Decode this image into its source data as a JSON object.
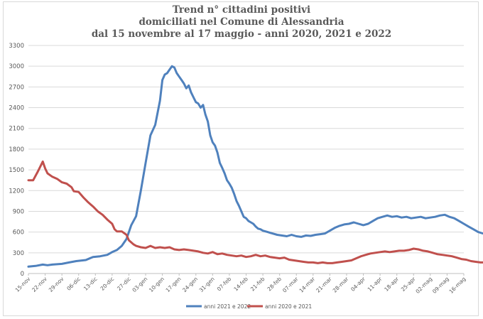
{
  "chart_data": {
    "type": "line",
    "title_lines": [
      "Trend n° cittadini positivi",
      "domiciliati nel Comune di Alessandria",
      "dal 15 novembre al 17 maggio - anni 2020, 2021 e 2022"
    ],
    "xlabel": "",
    "ylabel": "",
    "ylim": [
      0,
      3300
    ],
    "yticks": [
      0,
      300,
      600,
      900,
      1200,
      1500,
      1800,
      2100,
      2400,
      2700,
      3000,
      3300
    ],
    "grid": true,
    "legend_position": "bottom",
    "x_tick_labels": [
      "15-nov",
      "22-nov",
      "29-nov",
      "06-dic",
      "13-dic",
      "20-dic",
      "27-dic",
      "03-gen",
      "10-gen",
      "17-gen",
      "24-gen",
      "31-gen",
      "07-feb",
      "14-feb",
      "21-feb",
      "28-feb",
      "07-mar",
      "14-mar",
      "21-mar",
      "28-mar",
      "04-apr",
      "11-apr",
      "18-apr",
      "25-apr",
      "02-mag",
      "09-mag",
      "16-mag"
    ],
    "series": [
      {
        "name": "anni 2021 e 2022",
        "color": "#4f81bd",
        "points": [
          [
            0,
            100
          ],
          [
            3,
            110
          ],
          [
            6,
            130
          ],
          [
            8,
            120
          ],
          [
            10,
            130
          ],
          [
            14,
            140
          ],
          [
            17,
            160
          ],
          [
            20,
            180
          ],
          [
            24,
            195
          ],
          [
            27,
            240
          ],
          [
            30,
            250
          ],
          [
            33,
            270
          ],
          [
            35,
            310
          ],
          [
            37,
            340
          ],
          [
            39,
            400
          ],
          [
            41,
            500
          ],
          [
            43,
            700
          ],
          [
            45,
            830
          ],
          [
            47,
            1200
          ],
          [
            49,
            1600
          ],
          [
            51,
            2000
          ],
          [
            53,
            2150
          ],
          [
            55,
            2500
          ],
          [
            56,
            2800
          ],
          [
            57,
            2880
          ],
          [
            58,
            2900
          ],
          [
            59,
            2950
          ],
          [
            60,
            3000
          ],
          [
            61,
            2980
          ],
          [
            62,
            2900
          ],
          [
            63,
            2850
          ],
          [
            64,
            2800
          ],
          [
            65,
            2750
          ],
          [
            66,
            2680
          ],
          [
            67,
            2720
          ],
          [
            68,
            2620
          ],
          [
            69,
            2550
          ],
          [
            70,
            2480
          ],
          [
            71,
            2460
          ],
          [
            72,
            2400
          ],
          [
            73,
            2440
          ],
          [
            74,
            2300
          ],
          [
            75,
            2200
          ],
          [
            76,
            2000
          ],
          [
            77,
            1900
          ],
          [
            78,
            1850
          ],
          [
            79,
            1750
          ],
          [
            80,
            1600
          ],
          [
            81,
            1530
          ],
          [
            82,
            1450
          ],
          [
            83,
            1350
          ],
          [
            84,
            1300
          ],
          [
            85,
            1240
          ],
          [
            86,
            1150
          ],
          [
            87,
            1050
          ],
          [
            88,
            980
          ],
          [
            89,
            900
          ],
          [
            90,
            820
          ],
          [
            91,
            800
          ],
          [
            92,
            760
          ],
          [
            93,
            740
          ],
          [
            94,
            720
          ],
          [
            95,
            680
          ],
          [
            96,
            650
          ],
          [
            97,
            640
          ],
          [
            98,
            620
          ],
          [
            100,
            600
          ],
          [
            102,
            580
          ],
          [
            104,
            560
          ],
          [
            106,
            550
          ],
          [
            108,
            540
          ],
          [
            110,
            560
          ],
          [
            112,
            540
          ],
          [
            114,
            530
          ],
          [
            116,
            550
          ],
          [
            118,
            545
          ],
          [
            120,
            560
          ],
          [
            122,
            570
          ],
          [
            124,
            580
          ],
          [
            126,
            620
          ],
          [
            128,
            660
          ],
          [
            130,
            690
          ],
          [
            132,
            710
          ],
          [
            134,
            720
          ],
          [
            136,
            740
          ],
          [
            138,
            720
          ],
          [
            140,
            700
          ],
          [
            142,
            720
          ],
          [
            144,
            760
          ],
          [
            146,
            800
          ],
          [
            148,
            820
          ],
          [
            150,
            840
          ],
          [
            152,
            820
          ],
          [
            154,
            830
          ],
          [
            156,
            810
          ],
          [
            158,
            820
          ],
          [
            160,
            800
          ],
          [
            162,
            810
          ],
          [
            164,
            820
          ],
          [
            166,
            800
          ],
          [
            168,
            810
          ],
          [
            170,
            820
          ],
          [
            172,
            840
          ],
          [
            174,
            850
          ],
          [
            176,
            820
          ],
          [
            178,
            800
          ],
          [
            180,
            760
          ],
          [
            182,
            720
          ],
          [
            184,
            680
          ],
          [
            186,
            640
          ],
          [
            188,
            600
          ],
          [
            190,
            580
          ],
          [
            192,
            590
          ],
          [
            194,
            570
          ],
          [
            196,
            580
          ],
          [
            198,
            570
          ],
          [
            200,
            560
          ],
          [
            202,
            540
          ]
        ]
      },
      {
        "name": "anni 2020 e 2021",
        "color": "#c0504d",
        "points": [
          [
            0,
            1350
          ],
          [
            2,
            1350
          ],
          [
            4,
            1480
          ],
          [
            6,
            1620
          ],
          [
            7,
            1520
          ],
          [
            8,
            1450
          ],
          [
            10,
            1400
          ],
          [
            12,
            1370
          ],
          [
            14,
            1320
          ],
          [
            16,
            1300
          ],
          [
            18,
            1250
          ],
          [
            19,
            1190
          ],
          [
            21,
            1180
          ],
          [
            23,
            1100
          ],
          [
            25,
            1030
          ],
          [
            27,
            970
          ],
          [
            29,
            900
          ],
          [
            31,
            850
          ],
          [
            33,
            780
          ],
          [
            35,
            720
          ],
          [
            36,
            640
          ],
          [
            37,
            610
          ],
          [
            39,
            610
          ],
          [
            41,
            560
          ],
          [
            42,
            480
          ],
          [
            44,
            420
          ],
          [
            45,
            400
          ],
          [
            47,
            380
          ],
          [
            49,
            370
          ],
          [
            51,
            400
          ],
          [
            53,
            370
          ],
          [
            55,
            380
          ],
          [
            57,
            370
          ],
          [
            59,
            380
          ],
          [
            61,
            350
          ],
          [
            63,
            340
          ],
          [
            65,
            350
          ],
          [
            67,
            340
          ],
          [
            69,
            330
          ],
          [
            71,
            320
          ],
          [
            73,
            300
          ],
          [
            75,
            290
          ],
          [
            77,
            310
          ],
          [
            79,
            280
          ],
          [
            81,
            290
          ],
          [
            83,
            270
          ],
          [
            85,
            260
          ],
          [
            87,
            250
          ],
          [
            89,
            260
          ],
          [
            91,
            240
          ],
          [
            93,
            250
          ],
          [
            95,
            270
          ],
          [
            97,
            250
          ],
          [
            99,
            260
          ],
          [
            101,
            240
          ],
          [
            103,
            230
          ],
          [
            105,
            220
          ],
          [
            107,
            230
          ],
          [
            109,
            200
          ],
          [
            111,
            190
          ],
          [
            113,
            180
          ],
          [
            115,
            170
          ],
          [
            117,
            160
          ],
          [
            119,
            160
          ],
          [
            121,
            150
          ],
          [
            123,
            160
          ],
          [
            125,
            150
          ],
          [
            127,
            150
          ],
          [
            129,
            160
          ],
          [
            131,
            170
          ],
          [
            133,
            180
          ],
          [
            135,
            190
          ],
          [
            137,
            220
          ],
          [
            139,
            250
          ],
          [
            141,
            270
          ],
          [
            143,
            290
          ],
          [
            145,
            300
          ],
          [
            147,
            310
          ],
          [
            149,
            320
          ],
          [
            151,
            310
          ],
          [
            153,
            320
          ],
          [
            155,
            330
          ],
          [
            157,
            330
          ],
          [
            159,
            340
          ],
          [
            161,
            360
          ],
          [
            163,
            350
          ],
          [
            165,
            330
          ],
          [
            167,
            320
          ],
          [
            169,
            300
          ],
          [
            171,
            280
          ],
          [
            173,
            270
          ],
          [
            175,
            260
          ],
          [
            177,
            250
          ],
          [
            179,
            230
          ],
          [
            181,
            210
          ],
          [
            183,
            200
          ],
          [
            185,
            180
          ],
          [
            187,
            170
          ],
          [
            189,
            160
          ],
          [
            191,
            160
          ],
          [
            193,
            150
          ],
          [
            195,
            150
          ],
          [
            197,
            160
          ],
          [
            199,
            170
          ],
          [
            201,
            180
          ],
          [
            203,
            170
          ],
          [
            205,
            180
          ],
          [
            207,
            175
          ],
          [
            209,
            160
          ],
          [
            211,
            170
          ],
          [
            213,
            160
          ],
          [
            215,
            155
          ],
          [
            217,
            160
          ],
          [
            219,
            150
          ],
          [
            221,
            160
          ]
        ]
      }
    ]
  }
}
